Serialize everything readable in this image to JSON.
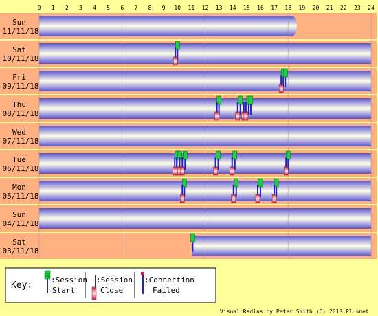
{
  "hour_ticks": [
    "0",
    "1",
    "2",
    "3",
    "4",
    "5",
    "6",
    "7",
    "8",
    "9",
    "10",
    "11",
    "12",
    "13",
    "14",
    "15",
    "16",
    "17",
    "18",
    "19",
    "20",
    "21",
    "22",
    "23",
    "24"
  ],
  "days": [
    {
      "day": "Sun",
      "date": "11/11/18",
      "connected_from": 0,
      "connected_to": 19.0,
      "ends_rounded": true,
      "events": []
    },
    {
      "day": "Sat",
      "date": "10/11/18",
      "connected_from": 0,
      "connected_to": 24,
      "ends_rounded": false,
      "events": [
        {
          "type": "start",
          "t": 10.0
        },
        {
          "type": "close",
          "t": 9.85
        }
      ]
    },
    {
      "day": "Fri",
      "date": "09/11/18",
      "connected_from": 0,
      "connected_to": 24,
      "ends_rounded": false,
      "events": [
        {
          "type": "start",
          "t": 17.65
        },
        {
          "type": "start",
          "t": 17.8
        },
        {
          "type": "close",
          "t": 17.5
        }
      ]
    },
    {
      "day": "Thu",
      "date": "08/11/18",
      "connected_from": 0,
      "connected_to": 24,
      "ends_rounded": false,
      "events": [
        {
          "type": "start",
          "t": 13.0
        },
        {
          "type": "close",
          "t": 12.85
        },
        {
          "type": "start",
          "t": 14.55
        },
        {
          "type": "close",
          "t": 14.35
        },
        {
          "type": "start",
          "t": 15.15
        },
        {
          "type": "start",
          "t": 15.3
        },
        {
          "type": "close",
          "t": 14.8
        },
        {
          "type": "close",
          "t": 14.95
        }
      ]
    },
    {
      "day": "Wed",
      "date": "07/11/18",
      "connected_from": 0,
      "connected_to": 24,
      "ends_rounded": false,
      "events": []
    },
    {
      "day": "Tue",
      "date": "06/11/18",
      "connected_from": 0,
      "connected_to": 24,
      "ends_rounded": false,
      "events": [
        {
          "type": "start",
          "t": 9.95
        },
        {
          "type": "start",
          "t": 10.15
        },
        {
          "type": "close",
          "t": 9.8
        },
        {
          "type": "close",
          "t": 9.95
        },
        {
          "type": "close",
          "t": 10.15
        },
        {
          "type": "start",
          "t": 10.55
        },
        {
          "type": "close",
          "t": 10.35
        },
        {
          "type": "start",
          "t": 12.95
        },
        {
          "type": "close",
          "t": 12.75
        },
        {
          "type": "start",
          "t": 14.15
        },
        {
          "type": "close",
          "t": 13.95
        },
        {
          "type": "start",
          "t": 18.0
        },
        {
          "type": "close",
          "t": 17.85
        }
      ]
    },
    {
      "day": "Mon",
      "date": "05/11/18",
      "connected_from": 0,
      "connected_to": 24,
      "ends_rounded": false,
      "events": [
        {
          "type": "start",
          "t": 10.5
        },
        {
          "type": "close",
          "t": 10.35
        },
        {
          "type": "start",
          "t": 14.25
        },
        {
          "type": "close",
          "t": 14.05
        },
        {
          "type": "start",
          "t": 16.0
        },
        {
          "type": "close",
          "t": 15.8
        },
        {
          "type": "start",
          "t": 17.15
        },
        {
          "type": "close",
          "t": 17.0
        }
      ]
    },
    {
      "day": "Sun",
      "date": "04/11/18",
      "connected_from": 0,
      "connected_to": 24,
      "ends_rounded": false,
      "events": []
    },
    {
      "day": "Sat",
      "date": "03/11/18",
      "connected_from": 11.05,
      "connected_to": 24,
      "ends_rounded": false,
      "events": [
        {
          "type": "start",
          "t": 11.1
        }
      ]
    }
  ],
  "key": {
    "title": "Key:",
    "session_start": [
      ":Session",
      "Start"
    ],
    "session_close": [
      ":Session",
      "Close"
    ],
    "connection_failed": [
      ":Connection",
      "Failed"
    ]
  },
  "credit": "Visual Radius by Peter Smith (C) 2018 Plusnet",
  "colors": {
    "page_bg": "#ffff99",
    "row_bg": "#ffb080",
    "tube_light": "#ffffe8",
    "tube_dark": "#5a54c0",
    "grid_line": "#888888",
    "start_marker": "#22cc44",
    "close_marker": "#cc2244",
    "marker_stem": "#2020cc"
  }
}
